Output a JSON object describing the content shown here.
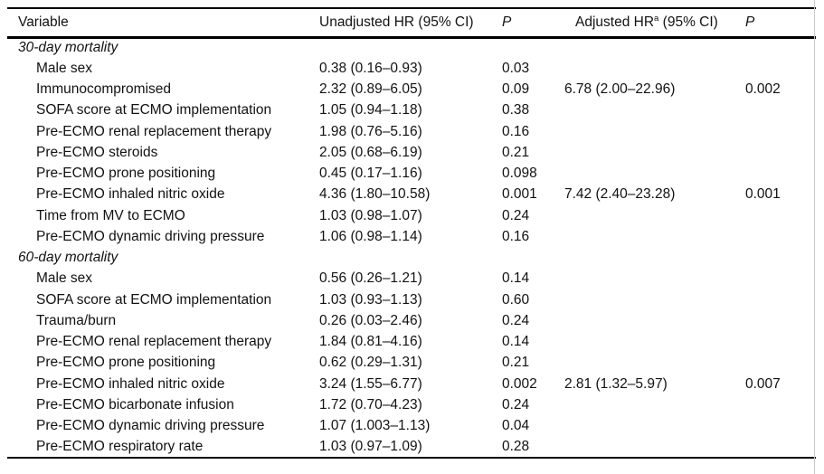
{
  "table": {
    "columns": [
      {
        "label": "Variable"
      },
      {
        "label": "Unadjusted HR (95% CI)"
      },
      {
        "label": "P"
      },
      {
        "label_pre": "Adjusted HR",
        "label_sup": "a",
        "label_post": " (95% CI)"
      },
      {
        "label": "P"
      }
    ],
    "sections": [
      {
        "label": "30-day mortality",
        "rows": [
          {
            "variable": "Male sex",
            "unadjusted_hr": "0.38 (0.16–0.93)",
            "p_unadjusted": "0.03",
            "adjusted_hr": "",
            "p_adjusted": ""
          },
          {
            "variable": "Immunocompromised",
            "unadjusted_hr": "2.32 (0.89–6.05)",
            "p_unadjusted": "0.09",
            "adjusted_hr": "6.78 (2.00–22.96)",
            "p_adjusted": "0.002"
          },
          {
            "variable": "SOFA score at ECMO implementation",
            "unadjusted_hr": "1.05 (0.94–1.18)",
            "p_unadjusted": "0.38",
            "adjusted_hr": "",
            "p_adjusted": ""
          },
          {
            "variable": "Pre-ECMO renal replacement therapy",
            "unadjusted_hr": "1.98 (0.76–5.16)",
            "p_unadjusted": "0.16",
            "adjusted_hr": "",
            "p_adjusted": ""
          },
          {
            "variable": "Pre-ECMO steroids",
            "unadjusted_hr": "2.05 (0.68–6.19)",
            "p_unadjusted": "0.21",
            "adjusted_hr": "",
            "p_adjusted": ""
          },
          {
            "variable": "Pre-ECMO prone positioning",
            "unadjusted_hr": "0.45 (0.17–1.16)",
            "p_unadjusted": "0.098",
            "adjusted_hr": "",
            "p_adjusted": ""
          },
          {
            "variable": "Pre-ECMO inhaled nitric oxide",
            "unadjusted_hr": "4.36 (1.80–10.58)",
            "p_unadjusted": "0.001",
            "adjusted_hr": "7.42 (2.40–23.28)",
            "p_adjusted": "0.001"
          },
          {
            "variable": "Time from MV to ECMO",
            "unadjusted_hr": "1.03 (0.98–1.07)",
            "p_unadjusted": "0.24",
            "adjusted_hr": "",
            "p_adjusted": ""
          },
          {
            "variable": "Pre-ECMO dynamic driving pressure",
            "unadjusted_hr": "1.06 (0.98–1.14)",
            "p_unadjusted": "0.16",
            "adjusted_hr": "",
            "p_adjusted": ""
          }
        ]
      },
      {
        "label": "60-day mortality",
        "rows": [
          {
            "variable": "Male sex",
            "unadjusted_hr": "0.56 (0.26–1.21)",
            "p_unadjusted": "0.14",
            "adjusted_hr": "",
            "p_adjusted": ""
          },
          {
            "variable": "SOFA score at ECMO implementation",
            "unadjusted_hr": "1.03 (0.93–1.13)",
            "p_unadjusted": "0.60",
            "adjusted_hr": "",
            "p_adjusted": ""
          },
          {
            "variable": "Trauma/burn",
            "unadjusted_hr": "0.26 (0.03–2.46)",
            "p_unadjusted": "0.24",
            "adjusted_hr": "",
            "p_adjusted": ""
          },
          {
            "variable": "Pre-ECMO renal replacement therapy",
            "unadjusted_hr": "1.84 (0.81–4.16)",
            "p_unadjusted": "0.14",
            "adjusted_hr": "",
            "p_adjusted": ""
          },
          {
            "variable": "Pre-ECMO prone positioning",
            "unadjusted_hr": "0.62 (0.29–1.31)",
            "p_unadjusted": "0.21",
            "adjusted_hr": "",
            "p_adjusted": ""
          },
          {
            "variable": "Pre-ECMO inhaled nitric oxide",
            "unadjusted_hr": "3.24 (1.55–6.77)",
            "p_unadjusted": "0.002",
            "adjusted_hr": "2.81 (1.32–5.97)",
            "p_adjusted": "0.007"
          },
          {
            "variable": "Pre-ECMO bicarbonate infusion",
            "unadjusted_hr": "1.72 (0.70–4.23)",
            "p_unadjusted": "0.24",
            "adjusted_hr": "",
            "p_adjusted": ""
          },
          {
            "variable": "Pre-ECMO dynamic driving pressure",
            "unadjusted_hr": "1.07 (1.003–1.13)",
            "p_unadjusted": "0.04",
            "adjusted_hr": "",
            "p_adjusted": ""
          },
          {
            "variable": "Pre-ECMO respiratory rate",
            "unadjusted_hr": "1.03 (0.97–1.09)",
            "p_unadjusted": "0.28",
            "adjusted_hr": "",
            "p_adjusted": ""
          }
        ]
      }
    ]
  }
}
